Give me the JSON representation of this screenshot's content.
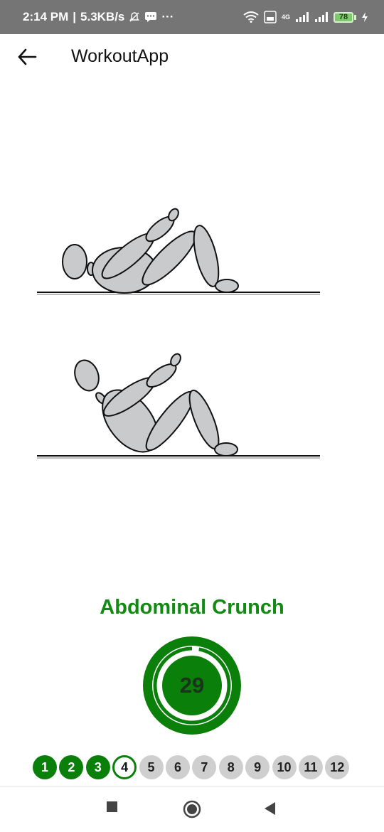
{
  "status_bar": {
    "time": "2:14 PM",
    "separator": "|",
    "speed": "5.3KB/s",
    "battery_level": "78",
    "network": "4G"
  },
  "app_bar": {
    "title": "WorkoutApp",
    "back_icon": "arrow-back-icon"
  },
  "exercise": {
    "name": "Abdominal Crunch",
    "illustration": "abdominal-crunch-figure",
    "timer_value": "29",
    "timer_progress": 0.03
  },
  "steps": [
    {
      "label": "1",
      "state": "done"
    },
    {
      "label": "2",
      "state": "done"
    },
    {
      "label": "3",
      "state": "done"
    },
    {
      "label": "4",
      "state": "current"
    },
    {
      "label": "5",
      "state": "pending"
    },
    {
      "label": "6",
      "state": "pending"
    },
    {
      "label": "7",
      "state": "pending"
    },
    {
      "label": "8",
      "state": "pending"
    },
    {
      "label": "9",
      "state": "pending"
    },
    {
      "label": "10",
      "state": "pending"
    },
    {
      "label": "11",
      "state": "pending"
    },
    {
      "label": "12",
      "state": "pending"
    }
  ],
  "colors": {
    "accent": "#0a7f0a",
    "title_green": "#138a13",
    "pending": "#cfcfcf",
    "status_bar": "#757575"
  },
  "nav": {
    "recents_icon": "square-stop-icon",
    "home_icon": "circle-home-icon",
    "back_icon": "triangle-back-icon"
  }
}
